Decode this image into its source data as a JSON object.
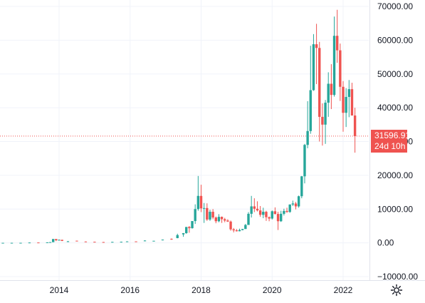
{
  "colors": {
    "up": "#26a69a",
    "down": "#ef5350",
    "grid": "#f0f3fa",
    "axis_text": "#131722",
    "last_price_line": "#ef5350"
  },
  "last_price": {
    "value": 31596.91,
    "label": "31596.91",
    "countdown": "24d 10h"
  },
  "settings_icon": "gear-icon",
  "chart_data": {
    "type": "candlestick",
    "title": "",
    "xlabel": "",
    "ylabel": "",
    "interval": "1M",
    "ylim": [
      -11000,
      71000
    ],
    "xlim": [
      "2012-03",
      "2022-11"
    ],
    "y_ticks": [
      "70000.00",
      "60000.00",
      "50000.00",
      "40000.00",
      "30000.00",
      "20000.00",
      "10000.00",
      "0.00",
      "−10000.00"
    ],
    "y_tick_values": [
      70000,
      60000,
      50000,
      40000,
      30000,
      20000,
      10000,
      0,
      -10000
    ],
    "x_ticks": [
      "2014",
      "2016",
      "2018",
      "2020",
      "2022"
    ],
    "x_tick_values": [
      "2014-01",
      "2016-01",
      "2018-01",
      "2020-01",
      "2022-01"
    ],
    "grid": true,
    "candles": [
      [
        "2012-03",
        5,
        5,
        4,
        5
      ],
      [
        "2012-06",
        6,
        7,
        5,
        7
      ],
      [
        "2012-09",
        12,
        13,
        11,
        12
      ],
      [
        "2012-12",
        13,
        14,
        13,
        14
      ],
      [
        "2013-03",
        30,
        90,
        30,
        90
      ],
      [
        "2013-06",
        100,
        110,
        70,
        90
      ],
      [
        "2013-09",
        120,
        140,
        110,
        140
      ],
      [
        "2013-10",
        140,
        220,
        130,
        210
      ],
      [
        "2013-11",
        210,
        1150,
        200,
        1130
      ],
      [
        "2013-12",
        1130,
        1150,
        500,
        760
      ],
      [
        "2014-01",
        760,
        1000,
        750,
        900
      ],
      [
        "2014-02",
        900,
        900,
        520,
        570
      ],
      [
        "2014-04",
        450,
        560,
        350,
        450
      ],
      [
        "2014-07",
        630,
        650,
        580,
        590
      ],
      [
        "2014-10",
        390,
        400,
        300,
        340
      ],
      [
        "2015-01",
        320,
        320,
        170,
        220
      ],
      [
        "2015-04",
        240,
        260,
        210,
        230
      ],
      [
        "2015-07",
        260,
        300,
        250,
        280
      ],
      [
        "2015-10",
        240,
        330,
        230,
        320
      ],
      [
        "2015-12",
        360,
        460,
        350,
        430
      ],
      [
        "2016-03",
        430,
        440,
        400,
        420
      ],
      [
        "2016-06",
        530,
        780,
        520,
        680
      ],
      [
        "2016-09",
        580,
        610,
        570,
        610
      ],
      [
        "2016-12",
        750,
        980,
        740,
        960
      ],
      [
        "2017-03",
        1200,
        1300,
        890,
        1080
      ],
      [
        "2017-05",
        1400,
        2700,
        1350,
        2300
      ],
      [
        "2017-07",
        2500,
        2900,
        1800,
        2870
      ],
      [
        "2017-08",
        2870,
        4700,
        2700,
        4700
      ],
      [
        "2017-09",
        4700,
        4980,
        3000,
        4340
      ],
      [
        "2017-10",
        4340,
        6450,
        4200,
        6450
      ],
      [
        "2017-11",
        6450,
        11400,
        5600,
        10000
      ],
      [
        "2017-12",
        10000,
        19800,
        9500,
        13900
      ],
      [
        "2018-01",
        13900,
        17200,
        9100,
        10200
      ],
      [
        "2018-02",
        10200,
        11800,
        5900,
        10300
      ],
      [
        "2018-03",
        10300,
        11700,
        6500,
        6900
      ],
      [
        "2018-04",
        6900,
        9800,
        6500,
        9200
      ],
      [
        "2018-05",
        9200,
        10000,
        7000,
        7500
      ],
      [
        "2018-06",
        7500,
        7800,
        5800,
        6400
      ],
      [
        "2018-07",
        6400,
        8500,
        6100,
        7700
      ],
      [
        "2018-08",
        7700,
        7800,
        5900,
        7000
      ],
      [
        "2018-09",
        7000,
        7400,
        6100,
        6600
      ],
      [
        "2018-10",
        6600,
        7000,
        6200,
        6300
      ],
      [
        "2018-11",
        6300,
        6600,
        3600,
        4000
      ],
      [
        "2018-12",
        4000,
        4400,
        3100,
        3700
      ],
      [
        "2019-01",
        3700,
        4100,
        3350,
        3450
      ],
      [
        "2019-02",
        3450,
        4200,
        3400,
        3800
      ],
      [
        "2019-03",
        3800,
        4100,
        3700,
        4100
      ],
      [
        "2019-04",
        4100,
        5600,
        4100,
        5300
      ],
      [
        "2019-05",
        5300,
        9100,
        5300,
        8600
      ],
      [
        "2019-06",
        8600,
        13900,
        7500,
        10800
      ],
      [
        "2019-07",
        10800,
        13200,
        9100,
        10100
      ],
      [
        "2019-08",
        10100,
        12300,
        9300,
        9600
      ],
      [
        "2019-09",
        9600,
        10900,
        7700,
        8300
      ],
      [
        "2019-10",
        8300,
        10400,
        7300,
        9200
      ],
      [
        "2019-11",
        9200,
        9500,
        6500,
        7600
      ],
      [
        "2019-12",
        7600,
        7800,
        6400,
        7200
      ],
      [
        "2020-01",
        7200,
        9600,
        6900,
        9350
      ],
      [
        "2020-02",
        9350,
        10500,
        8400,
        8550
      ],
      [
        "2020-03",
        8550,
        9200,
        3800,
        6400
      ],
      [
        "2020-04",
        6400,
        9500,
        6200,
        8600
      ],
      [
        "2020-05",
        8600,
        10100,
        8100,
        9450
      ],
      [
        "2020-06",
        9450,
        10400,
        8900,
        9150
      ],
      [
        "2020-07",
        9150,
        11400,
        8900,
        11350
      ],
      [
        "2020-08",
        11350,
        12500,
        10900,
        11650
      ],
      [
        "2020-09",
        11650,
        12100,
        9900,
        10800
      ],
      [
        "2020-10",
        10800,
        14000,
        10400,
        13800
      ],
      [
        "2020-11",
        13800,
        19800,
        13200,
        19700
      ],
      [
        "2020-12",
        19700,
        29300,
        17600,
        29000
      ],
      [
        "2021-01",
        29000,
        41950,
        28000,
        33100
      ],
      [
        "2021-02",
        33100,
        58350,
        32300,
        45200
      ],
      [
        "2021-03",
        45200,
        61800,
        45000,
        58800
      ],
      [
        "2021-04",
        58800,
        64850,
        47000,
        57700
      ],
      [
        "2021-05",
        57700,
        59500,
        30000,
        37300
      ],
      [
        "2021-06",
        37300,
        41300,
        28800,
        35000
      ],
      [
        "2021-07",
        35000,
        42300,
        29300,
        41500
      ],
      [
        "2021-08",
        41500,
        50500,
        37300,
        47100
      ],
      [
        "2021-09",
        47100,
        52900,
        39600,
        43800
      ],
      [
        "2021-10",
        43800,
        67000,
        43300,
        61300
      ],
      [
        "2021-11",
        61300,
        69000,
        53300,
        57000
      ],
      [
        "2021-12",
        57000,
        59000,
        42000,
        46200
      ],
      [
        "2022-01",
        46200,
        47900,
        32900,
        38500
      ],
      [
        "2022-02",
        38500,
        45800,
        34300,
        43200
      ],
      [
        "2022-03",
        43200,
        48200,
        37200,
        45500
      ],
      [
        "2022-04",
        45500,
        47400,
        37700,
        37700
      ],
      [
        "2022-05",
        37700,
        40000,
        26700,
        31596.91
      ]
    ]
  }
}
